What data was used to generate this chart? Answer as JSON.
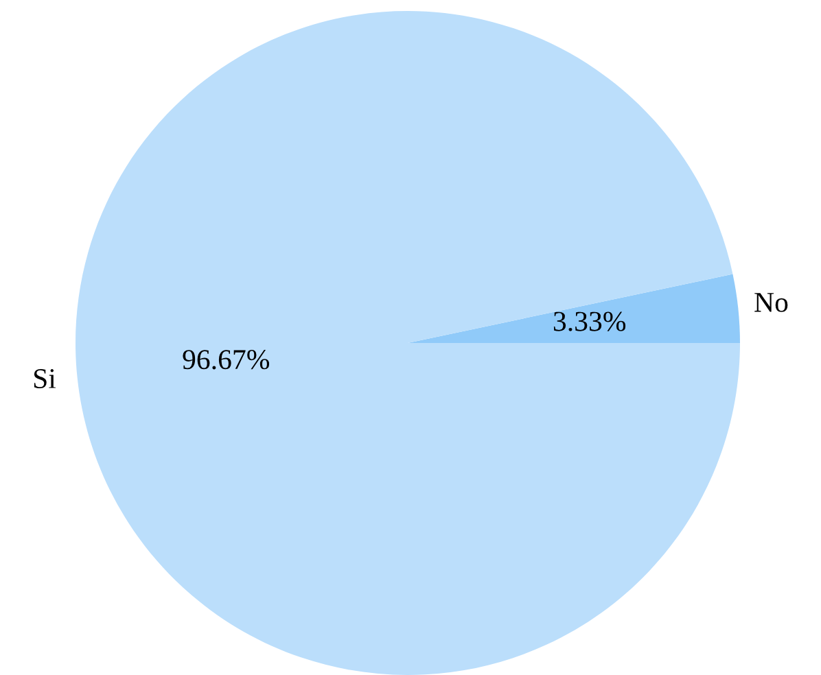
{
  "chart_data": {
    "type": "pie",
    "categories": [
      "No",
      "Si"
    ],
    "values": [
      3.33,
      96.67
    ],
    "colors": [
      "#90caf9",
      "#bbdefb"
    ],
    "value_labels": [
      "3.33%",
      "96.67%"
    ]
  }
}
